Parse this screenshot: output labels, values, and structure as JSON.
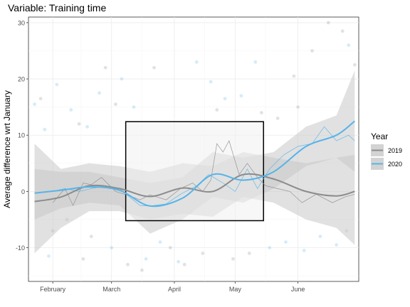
{
  "chart_data": {
    "type": "line",
    "title": "Variable: Training time",
    "xlabel": "",
    "ylabel": "Average difference wrt January",
    "x_ticks": [
      "February",
      "March",
      "April",
      "May",
      "June"
    ],
    "y_ticks": [
      "-10",
      "0",
      "10",
      "20",
      "30"
    ],
    "xlim": [
      "2020-01-20",
      "2020-07-01"
    ],
    "ylim": [
      -16,
      31
    ],
    "grid": true,
    "legend": {
      "title": "Year",
      "position": "right"
    },
    "colors": {
      "2019": "#8c8c8c",
      "2020": "#56b4e9",
      "band": "#c8c8c8",
      "box": "#000000"
    },
    "highlight_box": {
      "x": [
        "2020-03-08",
        "2020-05-15"
      ],
      "y": [
        -5.2,
        12.4
      ]
    },
    "series": [
      {
        "name": "2019",
        "smooth": [
          [
            "2020-01-23",
            -1.8
          ],
          [
            "2020-02-05",
            -1.0
          ],
          [
            "2020-02-19",
            1.0
          ],
          [
            "2020-03-05",
            0.5
          ],
          [
            "2020-03-20",
            -0.9
          ],
          [
            "2020-04-05",
            0.6
          ],
          [
            "2020-04-20",
            0.0
          ],
          [
            "2020-05-05",
            3.0
          ],
          [
            "2020-05-20",
            2.2
          ],
          [
            "2020-06-05",
            0.0
          ],
          [
            "2020-06-20",
            -0.8
          ],
          [
            "2020-06-29",
            0.0
          ]
        ],
        "band_upper": [
          8.5,
          4.0,
          5.0,
          4.5,
          3.5,
          5.0,
          4.5,
          7.0,
          6.0,
          5.0,
          6.0,
          6.5
        ],
        "band_lower": [
          -11.0,
          -6.5,
          -3.5,
          -3.5,
          -5.0,
          -4.0,
          -4.5,
          -1.0,
          -2.0,
          -5.0,
          -6.5,
          -9.5
        ],
        "raw": [
          [
            "2020-02-01",
            -2.0
          ],
          [
            "2020-02-07",
            0.5
          ],
          [
            "2020-02-11",
            -2.5
          ],
          [
            "2020-02-16",
            1.5
          ],
          [
            "2020-02-20",
            1.2
          ],
          [
            "2020-02-25",
            2.5
          ],
          [
            "2020-03-03",
            0.0
          ],
          [
            "2020-03-10",
            -0.8
          ],
          [
            "2020-03-15",
            -1.5
          ],
          [
            "2020-03-20",
            -0.6
          ],
          [
            "2020-03-28",
            -1.5
          ],
          [
            "2020-04-04",
            0.5
          ],
          [
            "2020-04-10",
            1.5
          ],
          [
            "2020-04-15",
            0.0
          ],
          [
            "2020-04-19",
            2.0
          ],
          [
            "2020-04-22",
            8.5
          ],
          [
            "2020-04-25",
            7.0
          ],
          [
            "2020-04-28",
            9.0
          ],
          [
            "2020-05-03",
            3.0
          ],
          [
            "2020-05-07",
            5.0
          ],
          [
            "2020-05-12",
            2.5
          ],
          [
            "2020-05-16",
            1.0
          ],
          [
            "2020-05-22",
            0.5
          ],
          [
            "2020-05-28",
            0.0
          ],
          [
            "2020-06-03",
            -2.0
          ],
          [
            "2020-06-10",
            -0.5
          ],
          [
            "2020-06-18",
            -2.0
          ],
          [
            "2020-06-24",
            -1.0
          ],
          [
            "2020-06-29",
            -0.5
          ]
        ]
      },
      {
        "name": "2020",
        "smooth": [
          [
            "2020-01-23",
            -0.3
          ],
          [
            "2020-02-05",
            0.2
          ],
          [
            "2020-02-19",
            0.8
          ],
          [
            "2020-03-05",
            0.2
          ],
          [
            "2020-03-20",
            -2.6
          ],
          [
            "2020-04-05",
            -1.2
          ],
          [
            "2020-04-20",
            3.0
          ],
          [
            "2020-05-05",
            2.0
          ],
          [
            "2020-05-20",
            3.5
          ],
          [
            "2020-06-05",
            8.0
          ],
          [
            "2020-06-20",
            10.0
          ],
          [
            "2020-06-29",
            12.5
          ]
        ],
        "band_upper": [
          4.0,
          3.5,
          3.5,
          2.5,
          1.5,
          2.5,
          7.0,
          6.0,
          7.0,
          11.5,
          13.5,
          21.5
        ],
        "band_lower": [
          -5.0,
          -3.0,
          -2.0,
          -2.5,
          -7.5,
          -5.0,
          -1.0,
          -2.0,
          0.5,
          4.5,
          6.0,
          3.5
        ],
        "raw": [
          [
            "2020-02-01",
            0.0
          ],
          [
            "2020-02-07",
            0.5
          ],
          [
            "2020-02-14",
            0.0
          ],
          [
            "2020-02-20",
            0.5
          ],
          [
            "2020-02-27",
            1.0
          ],
          [
            "2020-03-05",
            0.5
          ],
          [
            "2020-03-10",
            -1.0
          ],
          [
            "2020-03-15",
            -2.5
          ],
          [
            "2020-03-20",
            -2.6
          ],
          [
            "2020-03-28",
            -2.2
          ],
          [
            "2020-04-04",
            -0.5
          ],
          [
            "2020-04-12",
            1.0
          ],
          [
            "2020-04-18",
            3.0
          ],
          [
            "2020-04-25",
            1.5
          ],
          [
            "2020-05-01",
            0.0
          ],
          [
            "2020-05-07",
            4.0
          ],
          [
            "2020-05-12",
            0.5
          ],
          [
            "2020-05-18",
            4.0
          ],
          [
            "2020-05-25",
            6.5
          ],
          [
            "2020-06-01",
            8.0
          ],
          [
            "2020-06-08",
            8.5
          ],
          [
            "2020-06-14",
            11.5
          ],
          [
            "2020-06-20",
            9.0
          ],
          [
            "2020-06-26",
            10.0
          ],
          [
            "2020-06-29",
            9.0
          ]
        ]
      }
    ],
    "scatter": [
      [
        "2020-01-23",
        15.5
      ],
      [
        "2020-01-26",
        16.5
      ],
      [
        "2020-01-28",
        11.0
      ],
      [
        "2020-02-01",
        -7.0
      ],
      [
        "2020-02-03",
        19.0
      ],
      [
        "2020-02-08",
        -5.0
      ],
      [
        "2020-02-10",
        14.5
      ],
      [
        "2020-02-14",
        12.0
      ],
      [
        "2020-02-18",
        11.5
      ],
      [
        "2020-02-20",
        -8.0
      ],
      [
        "2020-02-24",
        17.5
      ],
      [
        "2020-02-27",
        22.0
      ],
      [
        "2020-03-01",
        -10.0
      ],
      [
        "2020-03-03",
        15.5
      ],
      [
        "2020-03-06",
        20.0
      ],
      [
        "2020-03-09",
        -13.0
      ],
      [
        "2020-03-12",
        15.0
      ],
      [
        "2020-03-16",
        -14.0
      ],
      [
        "2020-03-18",
        -12.0
      ],
      [
        "2020-03-22",
        22.0
      ],
      [
        "2020-03-25",
        -9.0
      ],
      [
        "2020-03-30",
        -10.0
      ],
      [
        "2020-04-03",
        -12.5
      ],
      [
        "2020-04-06",
        -13.0
      ],
      [
        "2020-04-12",
        23.0
      ],
      [
        "2020-04-15",
        -11.0
      ],
      [
        "2020-04-19",
        19.5
      ],
      [
        "2020-04-22",
        14.5
      ],
      [
        "2020-04-26",
        16.5
      ],
      [
        "2020-04-30",
        -12.0
      ],
      [
        "2020-05-04",
        17.0
      ],
      [
        "2020-05-08",
        -11.0
      ],
      [
        "2020-05-11",
        23.0
      ],
      [
        "2020-05-14",
        14.0
      ],
      [
        "2020-05-18",
        -10.0
      ],
      [
        "2020-05-22",
        13.0
      ],
      [
        "2020-05-26",
        -9.0
      ],
      [
        "2020-06-01",
        15.0
      ],
      [
        "2020-06-04",
        -10.5
      ],
      [
        "2020-06-08",
        25.0
      ],
      [
        "2020-06-12",
        -8.0
      ],
      [
        "2020-06-16",
        30.0
      ],
      [
        "2020-06-20",
        -9.5
      ],
      [
        "2020-06-23",
        28.5
      ],
      [
        "2020-06-26",
        26.0
      ],
      [
        "2020-06-29",
        22.5
      ],
      [
        "2020-06-25",
        -7.0
      ],
      [
        "2020-02-16",
        -12.0
      ],
      [
        "2020-01-30",
        -11.5
      ],
      [
        "2020-05-30",
        20.5
      ]
    ]
  }
}
